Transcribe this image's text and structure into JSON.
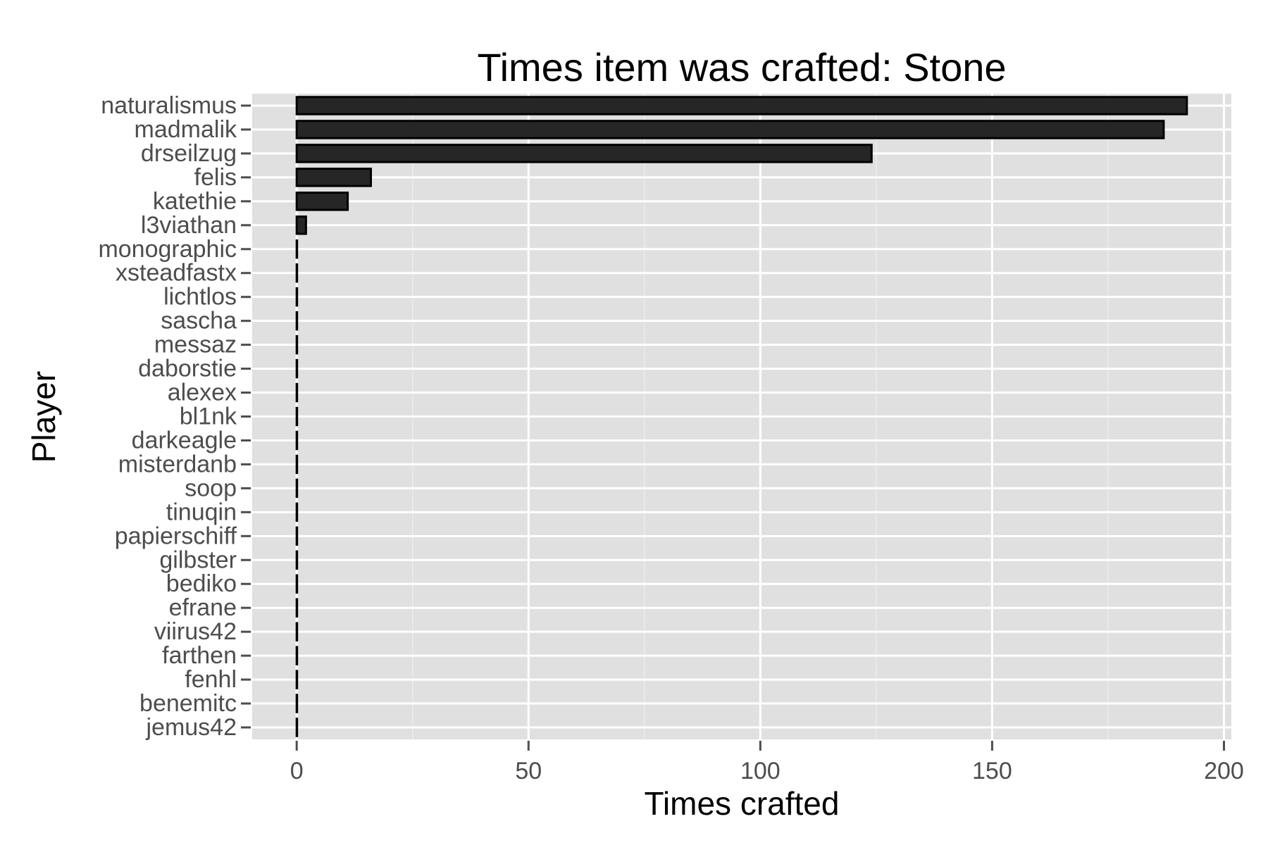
{
  "chart_data": {
    "type": "bar",
    "orientation": "horizontal",
    "title": "Times item was crafted: Stone",
    "xlabel": "Times crafted",
    "ylabel": "Player",
    "xlim": [
      -9.6,
      201.6
    ],
    "xticks": [
      0,
      50,
      100,
      150,
      200
    ],
    "grid": true,
    "categories": [
      "naturalismus",
      "madmalik",
      "drseilzug",
      "felis",
      "katethie",
      "l3viathan",
      "monographic",
      "xsteadfastx",
      "lichtlos",
      "sascha",
      "messaz",
      "daborstie",
      "alexex",
      "bl1nk",
      "darkeagle",
      "misterdanb",
      "soop",
      "tinuqin",
      "papierschiff",
      "gilbster",
      "bediko",
      "efrane",
      "viirus42",
      "farthen",
      "fenhl",
      "benemitc",
      "jemus42"
    ],
    "values": [
      192,
      187,
      124,
      16,
      11,
      2,
      0,
      0,
      0,
      0,
      0,
      0,
      0,
      0,
      0,
      0,
      0,
      0,
      0,
      0,
      0,
      0,
      0,
      0,
      0,
      0,
      0
    ],
    "colors": {
      "panel": "#e0e0e0",
      "grid_major": "#ffffff",
      "grid_minor": "#ececec",
      "bar_fill": "#262626",
      "bar_stroke": "#000000",
      "tick_text": "#4d4d4d",
      "text": "#000000"
    }
  }
}
